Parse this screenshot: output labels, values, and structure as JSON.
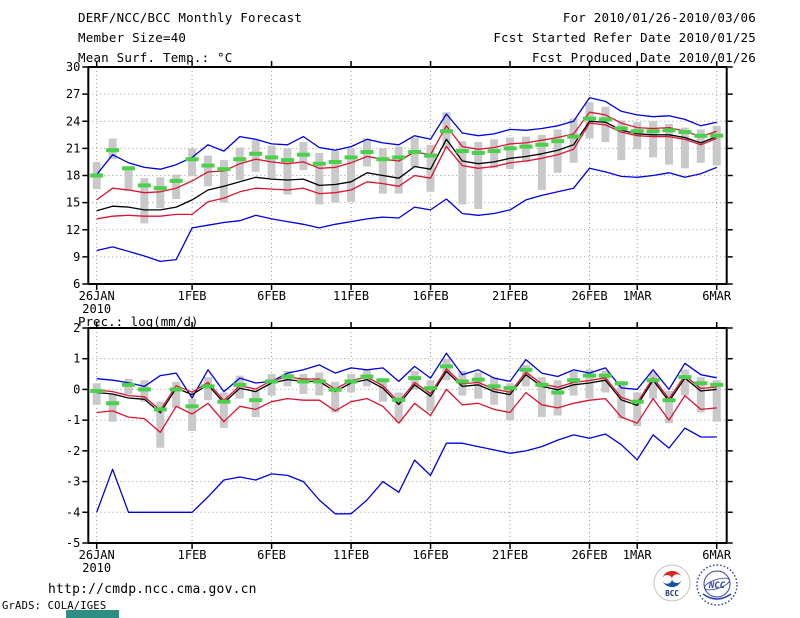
{
  "header": {
    "title": "DERF/NCC/BCC Monthly Forecast",
    "member_size": "Member Size=40",
    "for_range": "For 2010/01/26-2010/03/06",
    "fcst_started": "Fcst Started Refer Date 2010/01/25",
    "fcst_produced": "Fcst Produced Date 2010/01/26"
  },
  "footer": {
    "url": "http://cmdp.ncc.cma.gov.cn",
    "grads_stamp": "GrADS: COLA/IGES",
    "bcc_logo_text": "BCC",
    "ncc_logo_text": "NCC"
  },
  "colors": {
    "blue": "#0000e0",
    "red": "#dc1432",
    "black": "#000000",
    "green": "#4ad04a",
    "gray": "#c9c9c9",
    "grid": "#999999",
    "teal_box": "#2f8e82"
  },
  "chart_data": [
    {
      "type": "line",
      "title": "Mean Surf. Temp.: °C",
      "grid": "dotted",
      "ylim": [
        6,
        30
      ],
      "yticks": [
        30,
        27,
        24,
        21,
        18,
        15,
        12,
        9,
        6
      ],
      "n_days": 40,
      "x_start_date": "2010/01/26",
      "x_tick_labels": [
        "26JAN",
        "1FEB",
        "6FEB",
        "11FEB",
        "16FEB",
        "21FEB",
        "26FEB",
        "1MAR",
        "6MAR"
      ],
      "x_tick_days": [
        0,
        6,
        11,
        16,
        21,
        26,
        31,
        34,
        39
      ],
      "x_year_label": "2010",
      "series": [
        {
          "name": "upper-blue-max",
          "color": "blue",
          "values": [
            18.1,
            20.3,
            19.4,
            18.9,
            18.7,
            19.2,
            20.0,
            21.4,
            20.7,
            22.3,
            22.0,
            21.5,
            21.4,
            22.3,
            21.1,
            20.8,
            21.2,
            22.0,
            21.6,
            21.4,
            22.4,
            22.0,
            24.8,
            22.7,
            22.4,
            22.6,
            23.1,
            23.0,
            23.2,
            23.5,
            24.0,
            26.6,
            26.2,
            25.1,
            24.7,
            24.5,
            24.6,
            24.2,
            23.5,
            23.9
          ]
        },
        {
          "name": "upper-red",
          "color": "red",
          "values": [
            15.3,
            16.6,
            16.4,
            16.1,
            16.2,
            16.6,
            17.4,
            18.4,
            18.5,
            19.3,
            19.8,
            19.5,
            19.3,
            19.5,
            18.8,
            18.9,
            19.4,
            20.1,
            19.8,
            19.6,
            20.6,
            20.3,
            23.5,
            21.2,
            20.9,
            21.1,
            21.5,
            21.6,
            21.9,
            22.2,
            22.6,
            25.0,
            24.7,
            23.8,
            23.3,
            23.2,
            23.3,
            22.9,
            22.3,
            22.9
          ]
        },
        {
          "name": "middle-black",
          "color": "black",
          "values": [
            14.1,
            14.6,
            14.5,
            14.2,
            14.2,
            14.5,
            15.3,
            16.4,
            16.8,
            17.3,
            17.8,
            17.6,
            17.5,
            17.6,
            16.9,
            17.0,
            17.3,
            18.3,
            18.0,
            17.7,
            19.0,
            18.7,
            22.0,
            19.6,
            19.3,
            19.5,
            19.9,
            20.1,
            20.4,
            20.8,
            21.4,
            24.0,
            23.9,
            23.0,
            22.6,
            22.5,
            22.5,
            22.2,
            21.6,
            22.3
          ]
        },
        {
          "name": "lower-red",
          "color": "red",
          "values": [
            13.2,
            13.5,
            13.6,
            13.5,
            13.5,
            13.7,
            13.7,
            15.1,
            15.5,
            16.2,
            16.6,
            16.5,
            16.4,
            16.6,
            16.0,
            16.1,
            16.4,
            17.3,
            17.1,
            16.8,
            18.0,
            17.7,
            21.2,
            19.1,
            18.8,
            19.0,
            19.4,
            19.6,
            19.9,
            20.3,
            20.9,
            23.8,
            23.6,
            22.8,
            22.4,
            22.3,
            22.3,
            22.0,
            21.4,
            22.1
          ]
        },
        {
          "name": "lower-blue-min",
          "color": "blue",
          "values": [
            9.7,
            10.1,
            9.6,
            9.1,
            8.5,
            8.7,
            12.2,
            12.5,
            12.8,
            13.0,
            13.6,
            13.2,
            12.9,
            12.6,
            12.2,
            12.6,
            12.9,
            13.2,
            13.4,
            13.3,
            14.5,
            14.2,
            15.4,
            13.8,
            13.6,
            13.8,
            14.2,
            15.3,
            15.8,
            16.2,
            16.6,
            18.8,
            18.4,
            17.9,
            17.8,
            18.0,
            18.3,
            17.8,
            18.2,
            18.9
          ]
        }
      ],
      "obs_dashes": {
        "name": "green-dash",
        "color": "green",
        "values": [
          18.0,
          20.8,
          18.8,
          16.9,
          16.6,
          17.4,
          19.8,
          19.1,
          18.7,
          19.8,
          20.4,
          20.0,
          19.7,
          20.3,
          19.3,
          19.5,
          20.0,
          20.6,
          19.8,
          20.0,
          20.6,
          20.2,
          22.9,
          20.7,
          20.5,
          20.7,
          21.0,
          21.2,
          21.4,
          21.8,
          22.3,
          24.3,
          24.2,
          23.2,
          22.9,
          22.9,
          23.0,
          22.8,
          22.4,
          22.4
        ]
      },
      "spread_bars": [
        [
          16.5,
          19.5
        ],
        [
          19.8,
          22.1
        ],
        [
          16.3,
          18.9
        ],
        [
          12.7,
          17.7
        ],
        [
          14.4,
          17.8
        ],
        [
          15.4,
          18.1
        ],
        [
          17.9,
          21.0
        ],
        [
          16.8,
          20.2
        ],
        [
          15.0,
          19.7
        ],
        [
          17.5,
          21.1
        ],
        [
          18.4,
          21.9
        ],
        [
          17.7,
          21.3
        ],
        [
          15.9,
          21.0
        ],
        [
          18.6,
          21.7
        ],
        [
          14.8,
          20.5
        ],
        [
          15.0,
          20.7
        ],
        [
          15.1,
          21.0
        ],
        [
          19.0,
          22.1
        ],
        [
          16.0,
          21.0
        ],
        [
          16.0,
          21.2
        ],
        [
          18.9,
          22.2
        ],
        [
          16.2,
          21.4
        ],
        [
          21.0,
          25.0
        ],
        [
          14.8,
          21.8
        ],
        [
          14.3,
          21.7
        ],
        [
          18.8,
          22.0
        ],
        [
          18.7,
          22.2
        ],
        [
          19.5,
          22.3
        ],
        [
          16.4,
          22.5
        ],
        [
          18.3,
          23.1
        ],
        [
          19.4,
          24.3
        ],
        [
          22.1,
          26.1
        ],
        [
          21.7,
          25.6
        ],
        [
          19.7,
          24.1
        ],
        [
          20.9,
          23.9
        ],
        [
          20.0,
          24.0
        ],
        [
          19.2,
          23.7
        ],
        [
          18.8,
          23.3
        ],
        [
          19.4,
          23.1
        ],
        [
          19.1,
          23.5
        ]
      ]
    },
    {
      "type": "line",
      "title": "Prec.: log(mm/d)",
      "grid": "dotted",
      "ylim": [
        -5,
        2
      ],
      "yticks": [
        2,
        1,
        0,
        -1,
        -2,
        -3,
        -4,
        -5
      ],
      "n_days": 40,
      "x_start_date": "2010/01/26",
      "x_tick_labels": [
        "26JAN",
        "1FEB",
        "6FEB",
        "11FEB",
        "16FEB",
        "21FEB",
        "26FEB",
        "1MAR",
        "6MAR"
      ],
      "x_tick_days": [
        0,
        6,
        11,
        16,
        21,
        26,
        31,
        34,
        39
      ],
      "x_year_label": "2010",
      "series": [
        {
          "name": "upper-blue-max",
          "color": "blue",
          "values": [
            0.35,
            0.3,
            0.22,
            0.1,
            0.45,
            0.53,
            -0.28,
            0.64,
            -0.07,
            0.37,
            0.21,
            0.26,
            0.53,
            0.64,
            0.8,
            0.53,
            0.7,
            0.64,
            0.7,
            0.26,
            0.75,
            0.37,
            1.18,
            0.48,
            0.64,
            0.37,
            0.26,
            0.97,
            0.53,
            0.42,
            0.64,
            0.53,
            0.7,
            0.05,
            0.0,
            0.64,
            0.0,
            0.85,
            0.48,
            0.38
          ]
        },
        {
          "name": "upper-red",
          "color": "red",
          "values": [
            -0.02,
            -0.07,
            -0.2,
            -0.24,
            -0.68,
            0.12,
            -0.09,
            0.23,
            -0.36,
            0.12,
            0.01,
            0.29,
            0.4,
            0.34,
            0.34,
            0.01,
            0.29,
            0.4,
            0.12,
            -0.41,
            0.23,
            -0.14,
            0.67,
            0.18,
            0.23,
            0.01,
            -0.09,
            0.56,
            0.18,
            0.07,
            0.23,
            0.29,
            0.38,
            -0.26,
            -0.44,
            0.38,
            -0.31,
            0.45,
            0.03,
            0.08
          ]
        },
        {
          "name": "middle-black",
          "color": "black",
          "values": [
            -0.1,
            -0.15,
            -0.28,
            -0.32,
            -0.76,
            0.04,
            -0.17,
            0.15,
            -0.44,
            0.04,
            -0.07,
            0.21,
            0.32,
            0.26,
            0.26,
            -0.07,
            0.21,
            0.32,
            0.04,
            -0.49,
            0.15,
            -0.22,
            0.59,
            0.1,
            0.15,
            -0.07,
            -0.17,
            0.48,
            0.1,
            -0.01,
            0.15,
            0.21,
            0.3,
            -0.34,
            -0.52,
            0.3,
            -0.39,
            0.37,
            -0.05,
            0.0
          ]
        },
        {
          "name": "lower-red",
          "color": "red",
          "values": [
            -0.75,
            -0.7,
            -0.9,
            -0.95,
            -1.4,
            -0.55,
            -0.8,
            -0.45,
            -1.05,
            -0.55,
            -0.65,
            -0.4,
            -0.3,
            -0.35,
            -0.35,
            -0.7,
            -0.4,
            -0.3,
            -0.55,
            -1.1,
            -0.45,
            -0.85,
            0.0,
            -0.5,
            -0.45,
            -0.65,
            -0.75,
            -0.1,
            -0.5,
            -0.6,
            -0.45,
            -0.35,
            -0.3,
            -0.9,
            -1.1,
            -0.3,
            -1.0,
            -0.2,
            -0.65,
            -0.6
          ]
        },
        {
          "name": "lower-blue-min",
          "color": "blue",
          "values": [
            -4.0,
            -2.6,
            -4.0,
            -4.0,
            -4.0,
            -4.0,
            -4.0,
            -3.5,
            -2.95,
            -2.85,
            -2.95,
            -2.75,
            -2.8,
            -3.0,
            -3.6,
            -4.05,
            -4.05,
            -3.6,
            -3.0,
            -3.35,
            -2.3,
            -2.8,
            -1.75,
            -1.75,
            -1.86,
            -1.97,
            -2.08,
            -2.0,
            -1.86,
            -1.65,
            -1.48,
            -1.59,
            -1.45,
            -1.8,
            -2.29,
            -1.48,
            -1.91,
            -1.26,
            -1.55,
            -1.55
          ]
        }
      ],
      "obs_dashes": {
        "name": "green-dash",
        "color": "green",
        "values": [
          -0.05,
          -0.45,
          0.15,
          0.0,
          -0.65,
          0.0,
          -0.55,
          0.1,
          -0.4,
          0.15,
          -0.35,
          0.26,
          0.42,
          0.26,
          0.26,
          -0.01,
          0.26,
          0.42,
          0.3,
          -0.34,
          0.37,
          0.04,
          0.75,
          0.26,
          0.32,
          0.1,
          0.04,
          0.64,
          0.15,
          -0.1,
          0.3,
          0.45,
          0.45,
          0.2,
          -0.4,
          0.3,
          -0.35,
          0.4,
          0.2,
          0.15
        ]
      },
      "spread_bars": [
        [
          -0.5,
          0.2
        ],
        [
          -1.05,
          -0.15
        ],
        [
          -0.15,
          0.35
        ],
        [
          -0.4,
          0.3
        ],
        [
          -1.9,
          -0.4
        ],
        [
          -0.6,
          0.25
        ],
        [
          -1.35,
          -0.3
        ],
        [
          -0.35,
          0.4
        ],
        [
          -1.25,
          -0.1
        ],
        [
          -0.3,
          0.45
        ],
        [
          -0.9,
          -0.05
        ],
        [
          -0.2,
          0.5
        ],
        [
          0.1,
          0.6
        ],
        [
          -0.15,
          0.5
        ],
        [
          -0.2,
          0.55
        ],
        [
          -0.75,
          0.25
        ],
        [
          -0.1,
          0.5
        ],
        [
          0.1,
          0.65
        ],
        [
          -0.4,
          0.35
        ],
        [
          -1.05,
          -0.1
        ],
        [
          0.0,
          0.6
        ],
        [
          -0.7,
          0.3
        ],
        [
          0.3,
          1.0
        ],
        [
          -0.2,
          0.6
        ],
        [
          -0.3,
          0.55
        ],
        [
          -0.5,
          0.4
        ],
        [
          -1.0,
          0.2
        ],
        [
          0.1,
          0.8
        ],
        [
          -0.9,
          0.4
        ],
        [
          -0.85,
          0.3
        ],
        [
          -0.2,
          0.6
        ],
        [
          -0.3,
          0.65
        ],
        [
          -0.1,
          0.6
        ],
        [
          -0.95,
          0.15
        ],
        [
          -1.2,
          -0.1
        ],
        [
          -0.3,
          0.55
        ],
        [
          -1.1,
          -0.05
        ],
        [
          -0.2,
          0.65
        ],
        [
          -0.75,
          0.4
        ],
        [
          -1.05,
          0.3
        ]
      ]
    }
  ]
}
